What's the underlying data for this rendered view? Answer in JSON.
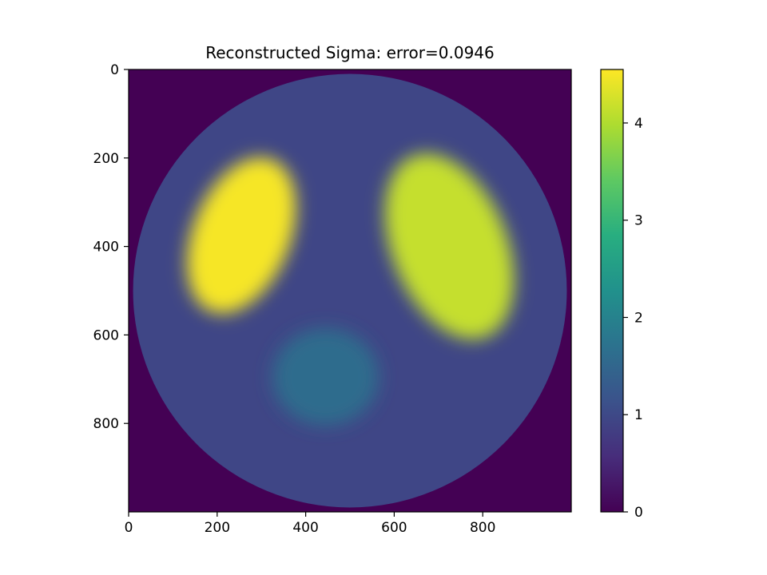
{
  "chart_data": {
    "type": "heatmap",
    "title": "Reconstructed Sigma: error=0.0946",
    "xlabel": "",
    "ylabel": "",
    "xlim": [
      0,
      1000
    ],
    "ylim": [
      1000,
      0
    ],
    "x_ticks": [
      0,
      200,
      400,
      600,
      800
    ],
    "y_ticks": [
      0,
      200,
      400,
      600,
      800
    ],
    "colorbar": {
      "colormap": "viridis",
      "range": [
        0,
        4.55
      ],
      "ticks": [
        0,
        1,
        2,
        3,
        4
      ]
    },
    "grid": false,
    "field": {
      "background_value": 0.0,
      "disk": {
        "cx": 500,
        "cy": 500,
        "r": 490,
        "value": 0.95
      },
      "inclusions": [
        {
          "name": "upper-left ellipse",
          "cx": 255,
          "cy": 375,
          "rx": 110,
          "ry": 185,
          "rotation_deg": 22,
          "value": 4.5
        },
        {
          "name": "upper-right ellipse",
          "cx": 725,
          "cy": 400,
          "rx": 130,
          "ry": 220,
          "rotation_deg": -22,
          "value": 4.15
        },
        {
          "name": "bottom circle",
          "cx": 445,
          "cy": 695,
          "rx": 120,
          "ry": 110,
          "rotation_deg": 0,
          "value": 1.6
        }
      ]
    }
  }
}
